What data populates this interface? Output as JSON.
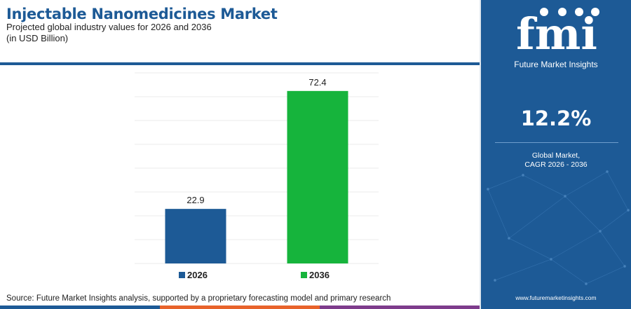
{
  "header": {
    "title": "Injectable Nanomedicines Market",
    "subtitle": "Projected global industry values for 2026 and 2036",
    "unit": "(in USD Billion)"
  },
  "chart_data": {
    "type": "bar",
    "title": "Injectable Nanomedicines Market",
    "subtitle": "Projected global industry values for 2026 and 2036",
    "ylabel": "",
    "xlabel": "",
    "categories": [
      "2026",
      "2036"
    ],
    "values": [
      22.9,
      72.4
    ],
    "value_labels": [
      "22.9",
      "72.4"
    ],
    "colors": [
      "#1d5a96",
      "#16b43c"
    ],
    "ylim": [
      0,
      80
    ],
    "grid": true,
    "legend": [
      "2026",
      "2036"
    ],
    "legend_position": "bottom"
  },
  "footer": {
    "source": "Source: Future Market Insights analysis, supported by a proprietary forecasting model and primary research",
    "bar_colors": [
      "#1d5a96",
      "#e8632b",
      "#7e3c8c"
    ]
  },
  "panel": {
    "logo_text": "fmi",
    "brand": "Future Market Insights",
    "cagr_value": "12.2%",
    "cagr_label_1": "Global Market,",
    "cagr_label_2": "CAGR 2026 - 2036",
    "url": "www.futuremarketinsights.com",
    "bg_color": "#1d5a96"
  }
}
